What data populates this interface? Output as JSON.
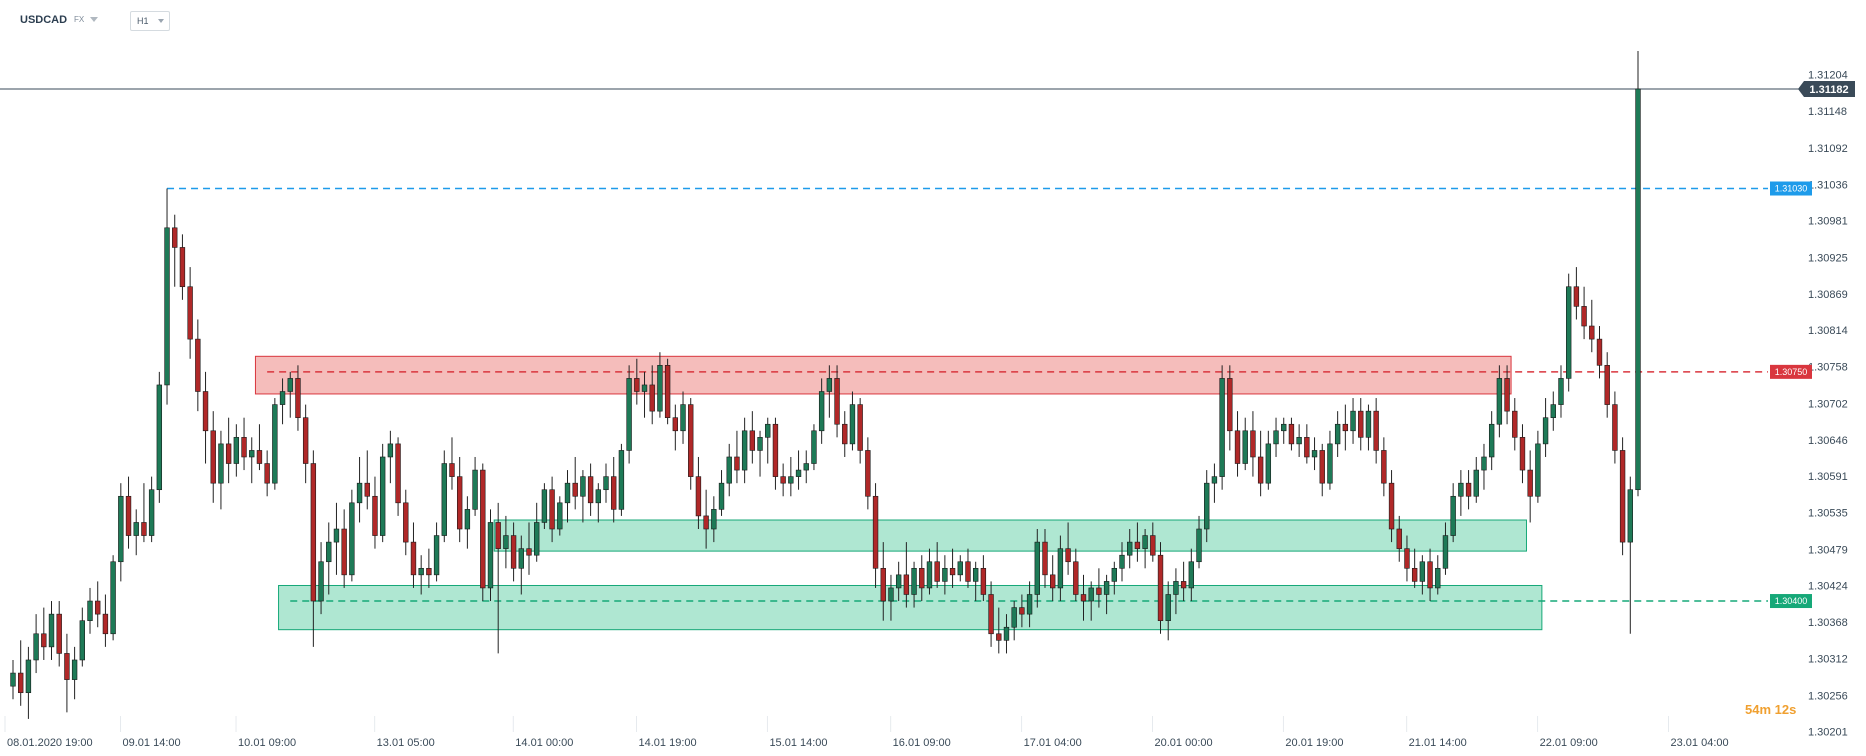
{
  "header": {
    "symbol": "USDCAD",
    "market": "FX",
    "timeframe": "H1"
  },
  "countdown": {
    "minutes": "54",
    "min_unit": "m",
    "seconds": "12",
    "sec_unit": "s"
  },
  "colors": {
    "up": "#1e7a57",
    "down": "#b02828",
    "current_price": "#3a4a58",
    "line_blue": "#1e9bea",
    "line_red": "#d9363e",
    "line_green": "#16a878",
    "zone_red_fill": "#f4b6b4",
    "zone_green_fill": "#a6e4cd"
  },
  "chart_data": {
    "type": "candlestick",
    "symbol": "USDCAD",
    "timeframe": "H1",
    "ylim": [
      1.302,
      1.3124
    ],
    "y_ticks": [
      "1.31204",
      "1.31148",
      "1.31092",
      "1.31036",
      "1.30981",
      "1.30925",
      "1.30869",
      "1.30814",
      "1.30758",
      "1.30702",
      "1.30646",
      "1.30591",
      "1.30535",
      "1.30479",
      "1.30424",
      "1.30368",
      "1.30312",
      "1.30256",
      "1.30201"
    ],
    "x_ticks": [
      "08.01.2020  19:00",
      "09.01  14:00",
      "10.01  09:00",
      "13.01  05:00",
      "14.01  00:00",
      "14.01  19:00",
      "15.01  14:00",
      "16.01  09:00",
      "17.01  04:00",
      "20.01  00:00",
      "20.01  19:00",
      "21.01  14:00",
      "22.01  09:00",
      "23.01  04:00"
    ],
    "current_price": {
      "value": 1.31182,
      "label": "1.31182"
    },
    "horizontal_lines": [
      {
        "label": "1.31030",
        "value": 1.3103,
        "color": "blue"
      },
      {
        "label": "1.30750",
        "value": 1.3075,
        "color": "red"
      },
      {
        "label": "1.30400",
        "value": 1.304,
        "color": "green"
      }
    ],
    "zones": [
      {
        "type": "resistance",
        "color": "red",
        "y_low": 1.3073,
        "y_high": 1.3076,
        "x_start_index": 32,
        "x_end_index": 194
      },
      {
        "type": "support",
        "color": "green",
        "y_low": 1.3049,
        "y_high": 1.3051,
        "x_start_index": 63,
        "x_end_index": 196
      },
      {
        "type": "support",
        "color": "green",
        "y_low": 1.3037,
        "y_high": 1.3041,
        "x_start_index": 35,
        "x_end_index": 198
      }
    ],
    "candles": [
      [
        1.3027,
        1.3031,
        1.3025,
        1.3029
      ],
      [
        1.3029,
        1.3034,
        1.3024,
        1.3026
      ],
      [
        1.3026,
        1.3033,
        1.3022,
        1.3031
      ],
      [
        1.3031,
        1.3038,
        1.3029,
        1.3035
      ],
      [
        1.3035,
        1.3039,
        1.3031,
        1.3033
      ],
      [
        1.3033,
        1.304,
        1.3031,
        1.3038
      ],
      [
        1.3038,
        1.304,
        1.303,
        1.3032
      ],
      [
        1.3032,
        1.3035,
        1.3023,
        1.3028
      ],
      [
        1.3028,
        1.3033,
        1.3025,
        1.3031
      ],
      [
        1.3031,
        1.3039,
        1.303,
        1.3037
      ],
      [
        1.3037,
        1.3042,
        1.3035,
        1.304
      ],
      [
        1.304,
        1.3043,
        1.3036,
        1.3038
      ],
      [
        1.3038,
        1.3041,
        1.3033,
        1.3035
      ],
      [
        1.3035,
        1.3047,
        1.3034,
        1.3046
      ],
      [
        1.3046,
        1.3058,
        1.3043,
        1.3056
      ],
      [
        1.3056,
        1.3059,
        1.3048,
        1.305
      ],
      [
        1.305,
        1.3054,
        1.3047,
        1.3052
      ],
      [
        1.3052,
        1.3058,
        1.3049,
        1.305
      ],
      [
        1.305,
        1.3059,
        1.3049,
        1.3057
      ],
      [
        1.3057,
        1.3075,
        1.3055,
        1.3073
      ],
      [
        1.3073,
        1.3103,
        1.307,
        1.3097
      ],
      [
        1.3097,
        1.3099,
        1.3088,
        1.3094
      ],
      [
        1.3094,
        1.3096,
        1.3086,
        1.3088
      ],
      [
        1.3088,
        1.3091,
        1.3077,
        1.308
      ],
      [
        1.308,
        1.3083,
        1.3069,
        1.3072
      ],
      [
        1.3072,
        1.3075,
        1.3061,
        1.3066
      ],
      [
        1.3066,
        1.3069,
        1.3055,
        1.3058
      ],
      [
        1.3058,
        1.3066,
        1.3054,
        1.3064
      ],
      [
        1.3064,
        1.3068,
        1.3058,
        1.3061
      ],
      [
        1.3061,
        1.3067,
        1.3059,
        1.3065
      ],
      [
        1.3065,
        1.3068,
        1.306,
        1.3062
      ],
      [
        1.3062,
        1.3065,
        1.3058,
        1.3063
      ],
      [
        1.3063,
        1.3067,
        1.306,
        1.3061
      ],
      [
        1.3061,
        1.3063,
        1.3056,
        1.3058
      ],
      [
        1.3058,
        1.3071,
        1.3057,
        1.307
      ],
      [
        1.307,
        1.3074,
        1.3067,
        1.3072
      ],
      [
        1.3072,
        1.3075,
        1.3068,
        1.3074
      ],
      [
        1.3074,
        1.3076,
        1.3066,
        1.3068
      ],
      [
        1.3068,
        1.307,
        1.3058,
        1.3061
      ],
      [
        1.3061,
        1.3063,
        1.3033,
        1.304
      ],
      [
        1.304,
        1.3049,
        1.3038,
        1.3046
      ],
      [
        1.3046,
        1.3052,
        1.3041,
        1.3049
      ],
      [
        1.3049,
        1.3055,
        1.3044,
        1.3051
      ],
      [
        1.3051,
        1.3054,
        1.3042,
        1.3044
      ],
      [
        1.3044,
        1.3057,
        1.3043,
        1.3055
      ],
      [
        1.3055,
        1.3062,
        1.3052,
        1.3058
      ],
      [
        1.3058,
        1.3063,
        1.3054,
        1.3056
      ],
      [
        1.3056,
        1.3059,
        1.3048,
        1.305
      ],
      [
        1.305,
        1.3064,
        1.3049,
        1.3062
      ],
      [
        1.3062,
        1.3066,
        1.3058,
        1.3064
      ],
      [
        1.3064,
        1.3065,
        1.3053,
        1.3055
      ],
      [
        1.3055,
        1.3057,
        1.3047,
        1.3049
      ],
      [
        1.3049,
        1.3052,
        1.3042,
        1.3044
      ],
      [
        1.3044,
        1.3047,
        1.3041,
        1.3045
      ],
      [
        1.3045,
        1.3048,
        1.3042,
        1.3044
      ],
      [
        1.3044,
        1.3052,
        1.3043,
        1.305
      ],
      [
        1.305,
        1.3063,
        1.3049,
        1.3061
      ],
      [
        1.3061,
        1.3065,
        1.3057,
        1.3059
      ],
      [
        1.3059,
        1.3062,
        1.3049,
        1.3051
      ],
      [
        1.3051,
        1.3056,
        1.3048,
        1.3054
      ],
      [
        1.3054,
        1.3062,
        1.3053,
        1.306
      ],
      [
        1.306,
        1.3061,
        1.304,
        1.3042
      ],
      [
        1.3042,
        1.3054,
        1.304,
        1.3052
      ],
      [
        1.3052,
        1.3055,
        1.3032,
        1.3048
      ],
      [
        1.3048,
        1.3053,
        1.3045,
        1.305
      ],
      [
        1.305,
        1.3052,
        1.3043,
        1.3045
      ],
      [
        1.3045,
        1.305,
        1.3041,
        1.3048
      ],
      [
        1.3048,
        1.3052,
        1.3044,
        1.3047
      ],
      [
        1.3047,
        1.3055,
        1.3046,
        1.3052
      ],
      [
        1.3052,
        1.3058,
        1.3051,
        1.3057
      ],
      [
        1.3057,
        1.3059,
        1.3049,
        1.3051
      ],
      [
        1.3051,
        1.3056,
        1.305,
        1.3055
      ],
      [
        1.3055,
        1.306,
        1.3052,
        1.3058
      ],
      [
        1.3058,
        1.3062,
        1.3054,
        1.3056
      ],
      [
        1.3056,
        1.306,
        1.3052,
        1.3059
      ],
      [
        1.3059,
        1.3061,
        1.3053,
        1.3055
      ],
      [
        1.3055,
        1.3058,
        1.3052,
        1.3057
      ],
      [
        1.3057,
        1.3061,
        1.3055,
        1.3059
      ],
      [
        1.3059,
        1.3062,
        1.3052,
        1.3054
      ],
      [
        1.3054,
        1.3064,
        1.3053,
        1.3063
      ],
      [
        1.3063,
        1.3076,
        1.3061,
        1.3074
      ],
      [
        1.3074,
        1.3077,
        1.307,
        1.3072
      ],
      [
        1.3072,
        1.3075,
        1.3068,
        1.3073
      ],
      [
        1.3073,
        1.3076,
        1.3067,
        1.3069
      ],
      [
        1.3069,
        1.3078,
        1.3068,
        1.3076
      ],
      [
        1.3076,
        1.3077,
        1.3067,
        1.3068
      ],
      [
        1.3068,
        1.307,
        1.3063,
        1.3066
      ],
      [
        1.3066,
        1.3072,
        1.3064,
        1.307
      ],
      [
        1.307,
        1.3071,
        1.3057,
        1.3059
      ],
      [
        1.3059,
        1.3062,
        1.3051,
        1.3053
      ],
      [
        1.3053,
        1.3057,
        1.3048,
        1.3051
      ],
      [
        1.3051,
        1.3056,
        1.3049,
        1.3054
      ],
      [
        1.3054,
        1.306,
        1.3053,
        1.3058
      ],
      [
        1.3058,
        1.3064,
        1.3056,
        1.3062
      ],
      [
        1.3062,
        1.3066,
        1.3058,
        1.306
      ],
      [
        1.306,
        1.3068,
        1.3058,
        1.3066
      ],
      [
        1.3066,
        1.3069,
        1.3061,
        1.3063
      ],
      [
        1.3063,
        1.3066,
        1.3059,
        1.3065
      ],
      [
        1.3065,
        1.3068,
        1.3061,
        1.3067
      ],
      [
        1.3067,
        1.3068,
        1.3057,
        1.3059
      ],
      [
        1.3059,
        1.3061,
        1.3056,
        1.3058
      ],
      [
        1.3058,
        1.3062,
        1.3056,
        1.3059
      ],
      [
        1.3059,
        1.3063,
        1.3057,
        1.306
      ],
      [
        1.306,
        1.3063,
        1.3058,
        1.3061
      ],
      [
        1.3061,
        1.3067,
        1.306,
        1.3066
      ],
      [
        1.3066,
        1.3074,
        1.3064,
        1.3072
      ],
      [
        1.3072,
        1.3076,
        1.3068,
        1.3074
      ],
      [
        1.3074,
        1.3076,
        1.3065,
        1.3067
      ],
      [
        1.3067,
        1.3069,
        1.3062,
        1.3064
      ],
      [
        1.3064,
        1.3072,
        1.3063,
        1.307
      ],
      [
        1.307,
        1.3071,
        1.3061,
        1.3063
      ],
      [
        1.3063,
        1.3065,
        1.3054,
        1.3056
      ],
      [
        1.3056,
        1.3058,
        1.3042,
        1.3045
      ],
      [
        1.3045,
        1.3049,
        1.3037,
        1.304
      ],
      [
        1.304,
        1.3044,
        1.3037,
        1.3042
      ],
      [
        1.3042,
        1.3046,
        1.304,
        1.3044
      ],
      [
        1.3044,
        1.3049,
        1.3039,
        1.3041
      ],
      [
        1.3041,
        1.3046,
        1.3039,
        1.3045
      ],
      [
        1.3045,
        1.3047,
        1.304,
        1.3042
      ],
      [
        1.3042,
        1.3048,
        1.3041,
        1.3046
      ],
      [
        1.3046,
        1.3049,
        1.3042,
        1.3043
      ],
      [
        1.3043,
        1.3047,
        1.3041,
        1.3045
      ],
      [
        1.3045,
        1.3048,
        1.3042,
        1.3044
      ],
      [
        1.3044,
        1.3047,
        1.3043,
        1.3046
      ],
      [
        1.3046,
        1.3048,
        1.3042,
        1.3043
      ],
      [
        1.3043,
        1.3046,
        1.304,
        1.3045
      ],
      [
        1.3045,
        1.3047,
        1.304,
        1.3041
      ],
      [
        1.3041,
        1.3043,
        1.3033,
        1.3035
      ],
      [
        1.3035,
        1.3039,
        1.3032,
        1.3034
      ],
      [
        1.3034,
        1.3038,
        1.3032,
        1.3036
      ],
      [
        1.3036,
        1.304,
        1.3034,
        1.3039
      ],
      [
        1.3039,
        1.3041,
        1.3036,
        1.3038
      ],
      [
        1.3038,
        1.3043,
        1.3036,
        1.3041
      ],
      [
        1.3041,
        1.3051,
        1.3039,
        1.3049
      ],
      [
        1.3049,
        1.3051,
        1.3042,
        1.3044
      ],
      [
        1.3044,
        1.3047,
        1.304,
        1.3042
      ],
      [
        1.3042,
        1.305,
        1.304,
        1.3048
      ],
      [
        1.3048,
        1.3052,
        1.3044,
        1.3046
      ],
      [
        1.3046,
        1.3048,
        1.304,
        1.3041
      ],
      [
        1.3041,
        1.3044,
        1.3037,
        1.304
      ],
      [
        1.304,
        1.3043,
        1.3037,
        1.3042
      ],
      [
        1.3042,
        1.3045,
        1.3039,
        1.3041
      ],
      [
        1.3041,
        1.3044,
        1.3038,
        1.3043
      ],
      [
        1.3043,
        1.3046,
        1.3041,
        1.3045
      ],
      [
        1.3045,
        1.3049,
        1.3043,
        1.3047
      ],
      [
        1.3047,
        1.3051,
        1.3045,
        1.3049
      ],
      [
        1.3049,
        1.3052,
        1.3046,
        1.3048
      ],
      [
        1.3048,
        1.3051,
        1.3045,
        1.305
      ],
      [
        1.305,
        1.3052,
        1.3046,
        1.3047
      ],
      [
        1.3047,
        1.3049,
        1.3035,
        1.3037
      ],
      [
        1.3037,
        1.3043,
        1.3034,
        1.3041
      ],
      [
        1.3041,
        1.3045,
        1.3038,
        1.3043
      ],
      [
        1.3043,
        1.3046,
        1.304,
        1.3042
      ],
      [
        1.3042,
        1.3048,
        1.304,
        1.3046
      ],
      [
        1.3046,
        1.3053,
        1.3045,
        1.3051
      ],
      [
        1.3051,
        1.306,
        1.3049,
        1.3058
      ],
      [
        1.3058,
        1.3061,
        1.3055,
        1.3059
      ],
      [
        1.3059,
        1.3076,
        1.3057,
        1.3074
      ],
      [
        1.3074,
        1.3076,
        1.3063,
        1.3066
      ],
      [
        1.3066,
        1.3069,
        1.3059,
        1.3061
      ],
      [
        1.3061,
        1.3068,
        1.306,
        1.3066
      ],
      [
        1.3066,
        1.3069,
        1.3059,
        1.3062
      ],
      [
        1.3062,
        1.3066,
        1.3056,
        1.3058
      ],
      [
        1.3058,
        1.3066,
        1.3057,
        1.3064
      ],
      [
        1.3064,
        1.3068,
        1.3062,
        1.3066
      ],
      [
        1.3066,
        1.3068,
        1.3064,
        1.3067
      ],
      [
        1.3067,
        1.3068,
        1.3063,
        1.3064
      ],
      [
        1.3064,
        1.3067,
        1.3062,
        1.3065
      ],
      [
        1.3065,
        1.3067,
        1.3061,
        1.3062
      ],
      [
        1.3062,
        1.3065,
        1.306,
        1.3063
      ],
      [
        1.3063,
        1.3064,
        1.3056,
        1.3058
      ],
      [
        1.3058,
        1.3066,
        1.3057,
        1.3064
      ],
      [
        1.3064,
        1.3069,
        1.3062,
        1.3067
      ],
      [
        1.3067,
        1.307,
        1.3063,
        1.3066
      ],
      [
        1.3066,
        1.3071,
        1.3064,
        1.3069
      ],
      [
        1.3069,
        1.3071,
        1.3063,
        1.3065
      ],
      [
        1.3065,
        1.307,
        1.3063,
        1.3069
      ],
      [
        1.3069,
        1.3071,
        1.3061,
        1.3063
      ],
      [
        1.3063,
        1.3065,
        1.3056,
        1.3058
      ],
      [
        1.3058,
        1.306,
        1.3049,
        1.3051
      ],
      [
        1.3051,
        1.3053,
        1.3046,
        1.3048
      ],
      [
        1.3048,
        1.305,
        1.3043,
        1.3045
      ],
      [
        1.3045,
        1.3048,
        1.3042,
        1.3043
      ],
      [
        1.3043,
        1.3047,
        1.3041,
        1.3046
      ],
      [
        1.3046,
        1.3048,
        1.304,
        1.3042
      ],
      [
        1.3042,
        1.3047,
        1.3041,
        1.3045
      ],
      [
        1.3045,
        1.3052,
        1.3044,
        1.305
      ],
      [
        1.305,
        1.3058,
        1.3049,
        1.3056
      ],
      [
        1.3056,
        1.306,
        1.3053,
        1.3058
      ],
      [
        1.3058,
        1.306,
        1.3054,
        1.3056
      ],
      [
        1.3056,
        1.3062,
        1.3055,
        1.306
      ],
      [
        1.306,
        1.3064,
        1.3057,
        1.3062
      ],
      [
        1.3062,
        1.3069,
        1.306,
        1.3067
      ],
      [
        1.3067,
        1.3076,
        1.3065,
        1.3074
      ],
      [
        1.3074,
        1.3076,
        1.3067,
        1.3069
      ],
      [
        1.3069,
        1.3071,
        1.3063,
        1.3065
      ],
      [
        1.3065,
        1.3067,
        1.3058,
        1.306
      ],
      [
        1.306,
        1.3063,
        1.3052,
        1.3056
      ],
      [
        1.3056,
        1.3066,
        1.3055,
        1.3064
      ],
      [
        1.3064,
        1.3071,
        1.3062,
        1.3068
      ],
      [
        1.3068,
        1.3072,
        1.3066,
        1.307
      ],
      [
        1.307,
        1.3076,
        1.3068,
        1.3074
      ],
      [
        1.3074,
        1.309,
        1.3072,
        1.3088
      ],
      [
        1.3088,
        1.3091,
        1.3083,
        1.3085
      ],
      [
        1.3085,
        1.3088,
        1.308,
        1.3082
      ],
      [
        1.3082,
        1.3086,
        1.3078,
        1.308
      ],
      [
        1.308,
        1.3082,
        1.3074,
        1.3076
      ],
      [
        1.3076,
        1.3078,
        1.3068,
        1.307
      ],
      [
        1.307,
        1.3072,
        1.3061,
        1.3063
      ],
      [
        1.3063,
        1.3065,
        1.3047,
        1.3049
      ],
      [
        1.3049,
        1.3059,
        1.3035,
        1.3057
      ],
      [
        1.3057,
        1.3124,
        1.3056,
        1.31182
      ]
    ]
  }
}
